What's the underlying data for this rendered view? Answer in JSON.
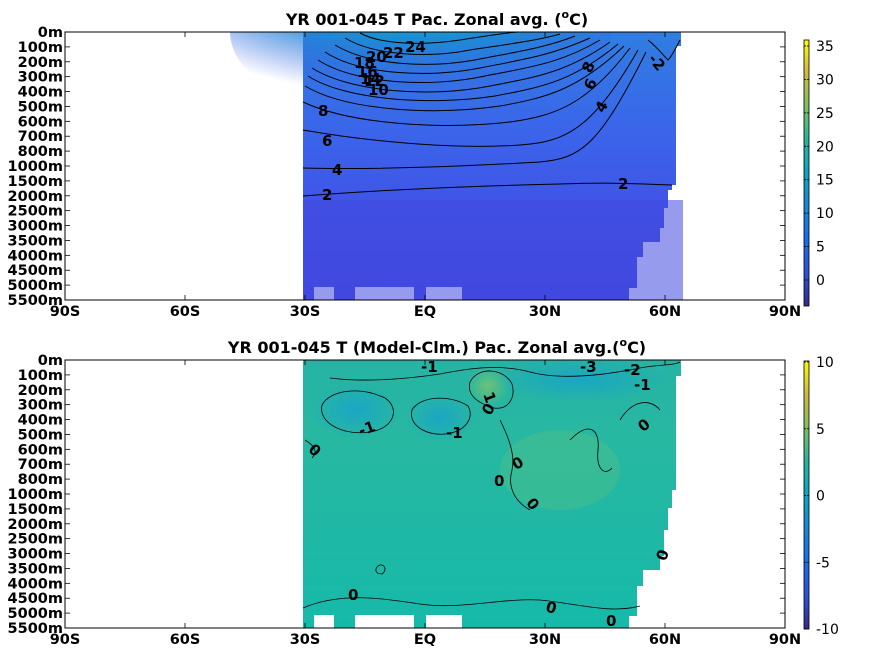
{
  "chart_data": [
    {
      "type": "heatmap",
      "title": "YR 001-045 T Pac. Zonal avg. (",
      "title_sup": "o",
      "title_end": "C)",
      "xlabel": "",
      "ylabel": "",
      "x_ticks": [
        "90S",
        "60S",
        "30S",
        "EQ",
        "30N",
        "60N",
        "90N"
      ],
      "y_ticks": [
        "0m",
        "100m",
        "200m",
        "300m",
        "400m",
        "500m",
        "600m",
        "700m",
        "800m",
        "1000m",
        "1500m",
        "2000m",
        "2500m",
        "3000m",
        "3500m",
        "4000m",
        "4500m",
        "5000m",
        "5500m"
      ],
      "xlim": [
        -90,
        90
      ],
      "data_extent_lat": [
        -34,
        62
      ],
      "colorbar": {
        "ticks": [
          "35",
          "30",
          "25",
          "20",
          "15",
          "10",
          "5",
          "0"
        ],
        "range": [
          -3,
          36
        ]
      },
      "contour_labels": [
        "24",
        "22",
        "20",
        "18",
        "16",
        "14",
        "12",
        "10",
        "8",
        "6",
        "4",
        "2",
        "8",
        "6",
        "4",
        "2",
        "-2"
      ]
    },
    {
      "type": "heatmap",
      "title": "YR 001-045 T (Model-Clm.) Pac. Zonal avg.(",
      "title_sup": "o",
      "title_end": "C)",
      "xlabel": "",
      "ylabel": "",
      "x_ticks": [
        "90S",
        "60S",
        "30S",
        "EQ",
        "30N",
        "60N",
        "90N"
      ],
      "y_ticks": [
        "0m",
        "100m",
        "200m",
        "300m",
        "400m",
        "500m",
        "600m",
        "700m",
        "800m",
        "1000m",
        "1500m",
        "2000m",
        "2500m",
        "3000m",
        "3500m",
        "4000m",
        "4500m",
        "5000m",
        "5500m"
      ],
      "xlim": [
        -90,
        90
      ],
      "data_extent_lat": [
        -34,
        62
      ],
      "colorbar": {
        "ticks": [
          "10",
          "5",
          "0",
          "-5",
          "-10"
        ],
        "range": [
          -10,
          10
        ]
      },
      "contour_labels": [
        "-1",
        "-3",
        "-2",
        "-1",
        "1",
        "0",
        "-1",
        "-1",
        "0",
        "0",
        "0",
        "0",
        "0",
        "0",
        "0",
        "0",
        "0"
      ]
    }
  ]
}
